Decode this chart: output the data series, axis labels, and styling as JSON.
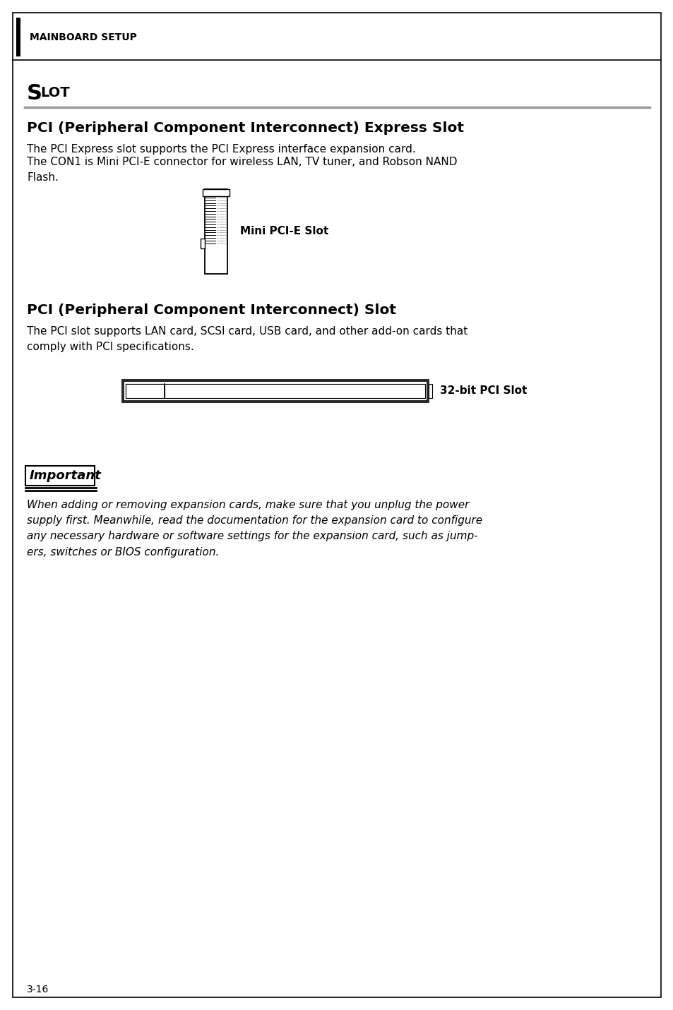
{
  "bg_color": "#ffffff",
  "border_color": "#000000",
  "header_bar_color": "#000000",
  "header_text": "MAINBOARD SETUP",
  "section_title_S": "S",
  "section_title_LOT": "LOT",
  "pci_express_title": "PCI (Peripheral Component Interconnect) Express Slot",
  "pci_express_body1": "The PCI Express slot supports the PCI Express interface expansion card.",
  "pci_express_body2": "The CON1 is Mini PCI-E connector for wireless LAN, TV tuner, and Robson NAND\nFlash.",
  "mini_pci_label": "Mini PCI-E Slot",
  "pci_slot_title": "PCI (Peripheral Component Interconnect) Slot",
  "pci_slot_body": "The PCI slot supports LAN card, SCSI card, USB card, and other add-on cards that\ncomply with PCI specifications.",
  "pci_32bit_label": "32-bit PCI Slot",
  "important_label": "Important",
  "important_body": "When adding or removing expansion cards, make sure that you unplug the power\nsupply first. Meanwhile, read the documentation for the expansion card to configure\nany necessary hardware or software settings for the expansion card, such as jump-\ners, switches or BIOS configuration.",
  "page_number": "3-16",
  "separator_color": "#999999",
  "text_color": "#000000",
  "body_fontsize": 11,
  "title_fontsize": 14.5
}
